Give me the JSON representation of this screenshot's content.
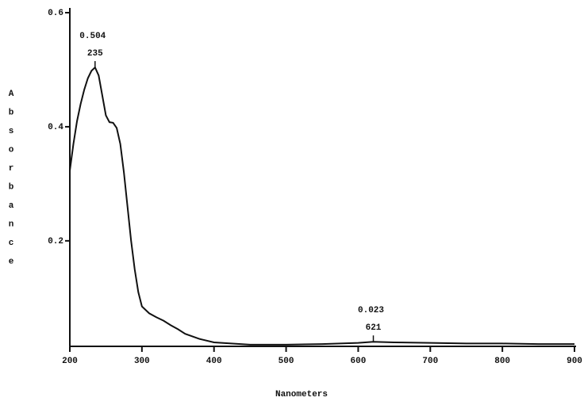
{
  "chart_data": {
    "type": "line",
    "y_label": "Absorbance",
    "x_label": "Nanometers",
    "x": [
      200,
      205,
      210,
      215,
      220,
      225,
      230,
      235,
      240,
      245,
      250,
      255,
      260,
      265,
      270,
      275,
      280,
      285,
      290,
      295,
      300,
      310,
      320,
      330,
      340,
      350,
      360,
      380,
      400,
      450,
      500,
      550,
      600,
      621,
      650,
      700,
      750,
      800,
      850,
      900
    ],
    "series": [
      {
        "color": "#111111",
        "values": [
          0.323,
          0.37,
          0.41,
          0.44,
          0.465,
          0.485,
          0.498,
          0.504,
          0.49,
          0.455,
          0.42,
          0.408,
          0.407,
          0.398,
          0.37,
          0.32,
          0.26,
          0.2,
          0.15,
          0.11,
          0.085,
          0.073,
          0.066,
          0.06,
          0.052,
          0.045,
          0.037,
          0.028,
          0.022,
          0.018,
          0.018,
          0.019,
          0.021,
          0.023,
          0.022,
          0.021,
          0.02,
          0.02,
          0.019,
          0.019
        ]
      }
    ],
    "peaks": [
      {
        "x": 235,
        "y": 0.504
      },
      {
        "x": 621,
        "y": 0.023
      }
    ],
    "xlim": [
      200,
      900
    ],
    "xticks": [
      200,
      300,
      400,
      500,
      600,
      700,
      800,
      900
    ],
    "ylim": [
      0.015,
      0.6
    ],
    "yticks": [
      0.2,
      0.4,
      0.6
    ]
  }
}
